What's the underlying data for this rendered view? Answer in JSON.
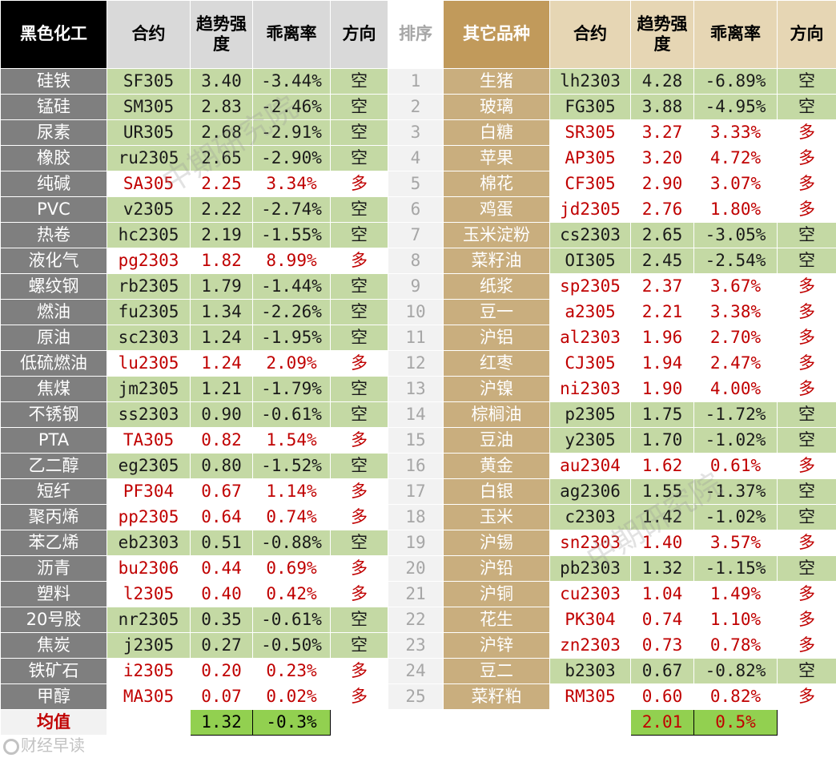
{
  "headers": {
    "left_category": "黑色化工",
    "contract": "合约",
    "trend_strength": "趋势强度",
    "deviation": "乖离率",
    "direction": "方向",
    "rank": "排序",
    "right_category": "其它品种"
  },
  "colors": {
    "short_fill": "#c4d9a4",
    "long_text": "#c00000",
    "gold_header": "#c19a5b",
    "gray_name": "#7f7f7f",
    "average_fill": "#92d050"
  },
  "rows": [
    {
      "rank": "1",
      "l_name": "硅铁",
      "l_code": "SF305",
      "l_trend": "3.40",
      "l_dev": "-3.44%",
      "l_dir": "空",
      "r_name": "生猪",
      "r_code": "lh2303",
      "r_trend": "4.28",
      "r_dev": "-6.89%",
      "r_dir": "空"
    },
    {
      "rank": "2",
      "l_name": "锰硅",
      "l_code": "SM305",
      "l_trend": "2.83",
      "l_dev": "-2.46%",
      "l_dir": "空",
      "r_name": "玻璃",
      "r_code": "FG305",
      "r_trend": "3.88",
      "r_dev": "-4.95%",
      "r_dir": "空"
    },
    {
      "rank": "3",
      "l_name": "尿素",
      "l_code": "UR305",
      "l_trend": "2.68",
      "l_dev": "-2.91%",
      "l_dir": "空",
      "r_name": "白糖",
      "r_code": "SR305",
      "r_trend": "3.27",
      "r_dev": "3.33%",
      "r_dir": "多"
    },
    {
      "rank": "4",
      "l_name": "橡胶",
      "l_code": "ru2305",
      "l_trend": "2.65",
      "l_dev": "-2.90%",
      "l_dir": "空",
      "r_name": "苹果",
      "r_code": "AP305",
      "r_trend": "3.20",
      "r_dev": "4.72%",
      "r_dir": "多"
    },
    {
      "rank": "5",
      "l_name": "纯碱",
      "l_code": "SA305",
      "l_trend": "2.25",
      "l_dev": "3.34%",
      "l_dir": "多",
      "r_name": "棉花",
      "r_code": "CF305",
      "r_trend": "2.90",
      "r_dev": "3.07%",
      "r_dir": "多"
    },
    {
      "rank": "6",
      "l_name": "PVC",
      "l_code": "v2305",
      "l_trend": "2.22",
      "l_dev": "-2.74%",
      "l_dir": "空",
      "r_name": "鸡蛋",
      "r_code": "jd2305",
      "r_trend": "2.76",
      "r_dev": "1.80%",
      "r_dir": "多"
    },
    {
      "rank": "7",
      "l_name": "热卷",
      "l_code": "hc2305",
      "l_trend": "2.19",
      "l_dev": "-1.55%",
      "l_dir": "空",
      "r_name": "玉米淀粉",
      "r_code": "cs2303",
      "r_trend": "2.65",
      "r_dev": "-3.05%",
      "r_dir": "空"
    },
    {
      "rank": "8",
      "l_name": "液化气",
      "l_code": "pg2303",
      "l_trend": "1.82",
      "l_dev": "8.99%",
      "l_dir": "多",
      "r_name": "菜籽油",
      "r_code": "OI305",
      "r_trend": "2.45",
      "r_dev": "-2.54%",
      "r_dir": "空"
    },
    {
      "rank": "9",
      "l_name": "螺纹钢",
      "l_code": "rb2305",
      "l_trend": "1.79",
      "l_dev": "-1.44%",
      "l_dir": "空",
      "r_name": "纸浆",
      "r_code": "sp2305",
      "r_trend": "2.37",
      "r_dev": "3.67%",
      "r_dir": "多"
    },
    {
      "rank": "10",
      "l_name": "燃油",
      "l_code": "fu2305",
      "l_trend": "1.34",
      "l_dev": "-2.26%",
      "l_dir": "空",
      "r_name": "豆一",
      "r_code": "a2305",
      "r_trend": "2.21",
      "r_dev": "3.38%",
      "r_dir": "多"
    },
    {
      "rank": "11",
      "l_name": "原油",
      "l_code": "sc2303",
      "l_trend": "1.24",
      "l_dev": "-1.95%",
      "l_dir": "空",
      "r_name": "沪铝",
      "r_code": "al2303",
      "r_trend": "1.96",
      "r_dev": "2.70%",
      "r_dir": "多"
    },
    {
      "rank": "12",
      "l_name": "低硫燃油",
      "l_code": "lu2305",
      "l_trend": "1.24",
      "l_dev": "2.09%",
      "l_dir": "多",
      "r_name": "红枣",
      "r_code": "CJ305",
      "r_trend": "1.94",
      "r_dev": "2.47%",
      "r_dir": "多"
    },
    {
      "rank": "13",
      "l_name": "焦煤",
      "l_code": "jm2305",
      "l_trend": "1.21",
      "l_dev": "-1.79%",
      "l_dir": "空",
      "r_name": "沪镍",
      "r_code": "ni2303",
      "r_trend": "1.90",
      "r_dev": "4.00%",
      "r_dir": "多"
    },
    {
      "rank": "14",
      "l_name": "不锈钢",
      "l_code": "ss2303",
      "l_trend": "0.90",
      "l_dev": "-0.61%",
      "l_dir": "空",
      "r_name": "棕榈油",
      "r_code": "p2305",
      "r_trend": "1.75",
      "r_dev": "-1.72%",
      "r_dir": "空"
    },
    {
      "rank": "15",
      "l_name": "PTA",
      "l_code": "TA305",
      "l_trend": "0.82",
      "l_dev": "1.54%",
      "l_dir": "多",
      "r_name": "豆油",
      "r_code": "y2305",
      "r_trend": "1.70",
      "r_dev": "-1.02%",
      "r_dir": "空"
    },
    {
      "rank": "16",
      "l_name": "乙二醇",
      "l_code": "eg2305",
      "l_trend": "0.80",
      "l_dev": "-1.52%",
      "l_dir": "空",
      "r_name": "黄金",
      "r_code": "au2304",
      "r_trend": "1.62",
      "r_dev": "0.61%",
      "r_dir": "多"
    },
    {
      "rank": "17",
      "l_name": "短纤",
      "l_code": "PF304",
      "l_trend": "0.67",
      "l_dev": "1.14%",
      "l_dir": "多",
      "r_name": "白银",
      "r_code": "ag2306",
      "r_trend": "1.55",
      "r_dev": "-1.37%",
      "r_dir": "空"
    },
    {
      "rank": "18",
      "l_name": "聚丙烯",
      "l_code": "pp2305",
      "l_trend": "0.64",
      "l_dev": "0.74%",
      "l_dir": "多",
      "r_name": "玉米",
      "r_code": "c2303",
      "r_trend": "1.42",
      "r_dev": "-1.02%",
      "r_dir": "空"
    },
    {
      "rank": "19",
      "l_name": "苯乙烯",
      "l_code": "eb2303",
      "l_trend": "0.51",
      "l_dev": "-0.88%",
      "l_dir": "空",
      "r_name": "沪锡",
      "r_code": "sn2303",
      "r_trend": "1.40",
      "r_dev": "3.57%",
      "r_dir": "多"
    },
    {
      "rank": "20",
      "l_name": "沥青",
      "l_code": "bu2306",
      "l_trend": "0.44",
      "l_dev": "0.69%",
      "l_dir": "多",
      "r_name": "沪铅",
      "r_code": "pb2303",
      "r_trend": "1.32",
      "r_dev": "-1.15%",
      "r_dir": "空"
    },
    {
      "rank": "21",
      "l_name": "塑料",
      "l_code": "l2305",
      "l_trend": "0.40",
      "l_dev": "0.42%",
      "l_dir": "多",
      "r_name": "沪铜",
      "r_code": "cu2303",
      "r_trend": "1.04",
      "r_dev": "1.49%",
      "r_dir": "多"
    },
    {
      "rank": "22",
      "l_name": "20号胶",
      "l_code": "nr2305",
      "l_trend": "0.35",
      "l_dev": "-0.61%",
      "l_dir": "空",
      "r_name": "花生",
      "r_code": "PK304",
      "r_trend": "0.74",
      "r_dev": "1.10%",
      "r_dir": "多"
    },
    {
      "rank": "23",
      "l_name": "焦炭",
      "l_code": "j2305",
      "l_trend": "0.27",
      "l_dev": "-0.50%",
      "l_dir": "空",
      "r_name": "沪锌",
      "r_code": "zn2303",
      "r_trend": "0.73",
      "r_dev": "0.78%",
      "r_dir": "多"
    },
    {
      "rank": "24",
      "l_name": "铁矿石",
      "l_code": "i2305",
      "l_trend": "0.20",
      "l_dev": "0.23%",
      "l_dir": "多",
      "r_name": "豆二",
      "r_code": "b2303",
      "r_trend": "0.67",
      "r_dev": "-0.82%",
      "r_dir": "空"
    },
    {
      "rank": "25",
      "l_name": "甲醇",
      "l_code": "MA305",
      "l_trend": "0.07",
      "l_dev": "0.02%",
      "l_dir": "多",
      "r_name": "菜籽粕",
      "r_code": "RM305",
      "r_trend": "0.60",
      "r_dev": "0.82%",
      "r_dir": "多"
    }
  ],
  "average": {
    "label": "均值",
    "left_trend": "1.32",
    "left_dev": "-0.3%",
    "right_trend": "2.01",
    "right_dev": "0.5%"
  },
  "watermarks": {
    "text_1": "中期研究院",
    "text_2": "中期研究院",
    "corner": "财经早读"
  }
}
